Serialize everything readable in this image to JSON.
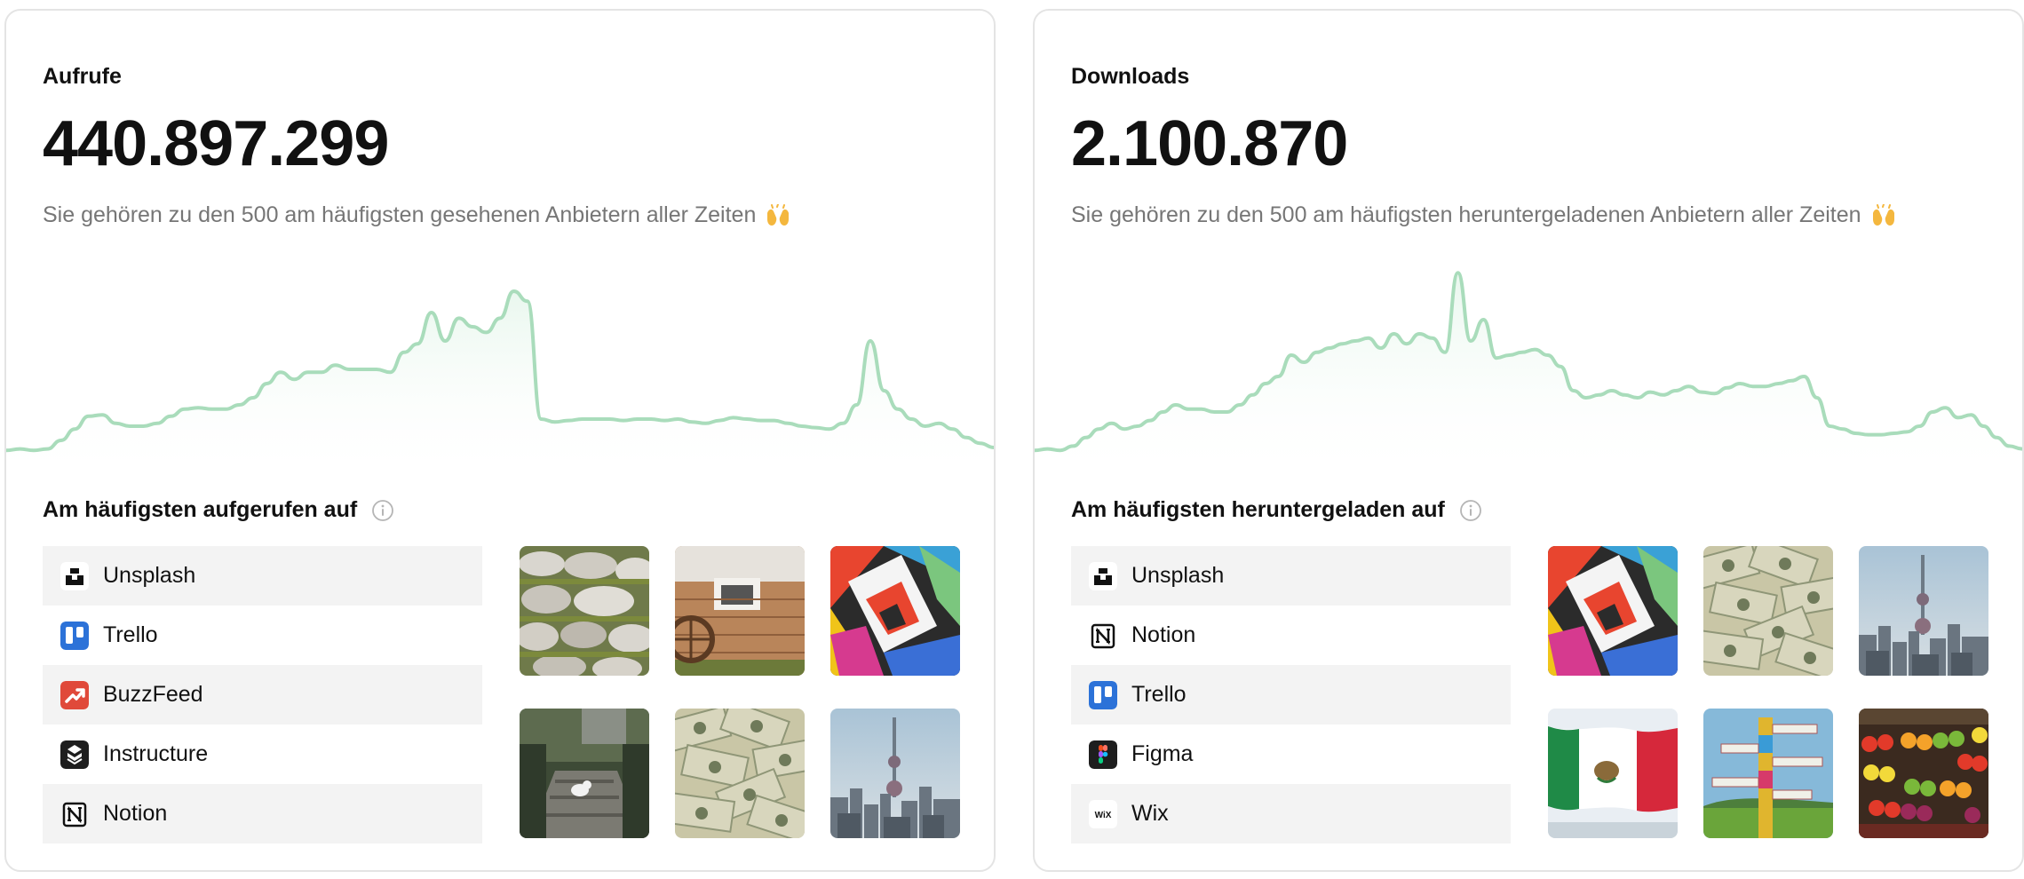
{
  "cards": [
    {
      "id": "views",
      "label": "Aufrufe",
      "value": "440.897.299",
      "description": "Sie gehören zu den 500 am häufigsten gesehenen Anbietern aller Zeiten",
      "emoji_icon": "raising-hands-icon",
      "section_title": "Am häufigsten aufgerufen auf",
      "platforms": [
        {
          "name": "Unsplash",
          "icon": "unsplash-logo-icon"
        },
        {
          "name": "Trello",
          "icon": "trello-logo-icon"
        },
        {
          "name": "BuzzFeed",
          "icon": "buzzfeed-logo-icon"
        },
        {
          "name": "Instructure",
          "icon": "instructure-logo-icon"
        },
        {
          "name": "Notion",
          "icon": "notion-logo-icon"
        }
      ],
      "photos": [
        "mossy-stone-wall",
        "rustic-brick-wall-window",
        "geometric-mural",
        "garden-stairs-cat",
        "dollar-bills",
        "city-skyline-tower"
      ],
      "sparkline": [
        3,
        4,
        3,
        4,
        10,
        18,
        27,
        28,
        22,
        20,
        20,
        22,
        27,
        32,
        33,
        32,
        32,
        35,
        40,
        50,
        58,
        53,
        58,
        58,
        63,
        60,
        60,
        60,
        58,
        72,
        78,
        100,
        80,
        96,
        90,
        86,
        96,
        115,
        108,
        25,
        23,
        24,
        25,
        25,
        25,
        24,
        25,
        25,
        24,
        25,
        23,
        22,
        24,
        26,
        25,
        24,
        24,
        22,
        20,
        19,
        18,
        22,
        35,
        80,
        45,
        32,
        25,
        20,
        22,
        18,
        12,
        8,
        5
      ]
    },
    {
      "id": "downloads",
      "label": "Downloads",
      "value": "2.100.870",
      "description": "Sie gehören zu den 500 am häufigsten heruntergeladenen Anbietern aller Zeiten",
      "emoji_icon": "raising-hands-icon",
      "section_title": "Am häufigsten heruntergeladen auf",
      "platforms": [
        {
          "name": "Unsplash",
          "icon": "unsplash-logo-icon"
        },
        {
          "name": "Notion",
          "icon": "notion-logo-icon"
        },
        {
          "name": "Trello",
          "icon": "trello-logo-icon"
        },
        {
          "name": "Figma",
          "icon": "figma-logo-icon"
        },
        {
          "name": "Wix",
          "icon": "wix-logo-icon"
        }
      ],
      "photos": [
        "geometric-mural",
        "dollar-bills",
        "city-skyline-tower",
        "mexican-flag",
        "signpost-pole",
        "fruit-market"
      ],
      "sparkline": [
        3,
        4,
        3,
        6,
        12,
        18,
        22,
        18,
        20,
        24,
        30,
        35,
        32,
        32,
        30,
        30,
        35,
        42,
        50,
        55,
        70,
        65,
        72,
        75,
        78,
        80,
        82,
        75,
        85,
        78,
        85,
        82,
        72,
        128,
        80,
        95,
        68,
        70,
        72,
        74,
        70,
        62,
        45,
        40,
        42,
        45,
        42,
        40,
        44,
        42,
        45,
        48,
        44,
        43,
        47,
        50,
        48,
        48,
        50,
        52,
        55,
        40,
        20,
        18,
        15,
        14,
        14,
        15,
        16,
        20,
        30,
        33,
        26,
        28,
        20,
        12,
        6,
        4
      ]
    }
  ],
  "colors": {
    "sparkline_stroke": "#a9dcbb",
    "sparkline_fill_top": "#e9f7ee",
    "row_alt": "#f3f3f3",
    "border": "#e4e4e4",
    "muted_text": "#767676"
  }
}
